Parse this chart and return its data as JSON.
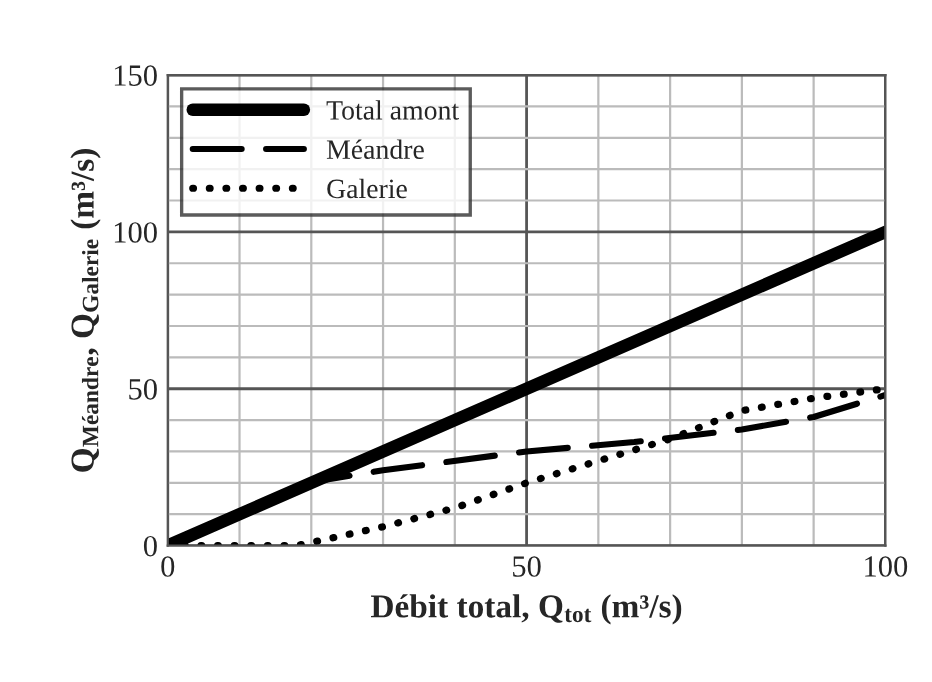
{
  "chart_data": {
    "type": "line",
    "xlabel": "Débit total, Q$_{tot}$ (m³/s)",
    "ylabel": "Q$_{Méandre}$, Q$_{Galerie}$ (m³/s)",
    "xlim": [
      0,
      100
    ],
    "xticks": [
      0,
      50,
      100
    ],
    "ylim": [
      0,
      150
    ],
    "yticks": [
      0,
      50,
      100,
      150
    ],
    "grid": true,
    "legend": "top left",
    "series": [
      {
        "name": "Total amont",
        "color": "#000000",
        "line_style": "solid",
        "x": [
          0,
          100
        ],
        "values": [
          0,
          100
        ]
      },
      {
        "name": "Méandre",
        "color": "#000000",
        "line_style": "dashed",
        "x": [
          0,
          20,
          22,
          30,
          50,
          65,
          80,
          90,
          100
        ],
        "values": [
          0,
          20,
          21,
          24,
          30,
          33,
          37,
          41,
          48
        ]
      },
      {
        "name": "Galerie",
        "color": "#000000",
        "line_style": "dotted",
        "x": [
          0,
          18,
          20,
          30,
          40,
          50,
          60,
          70,
          80,
          90,
          100
        ],
        "values": [
          0,
          0,
          1,
          6,
          12,
          20,
          27,
          34,
          43,
          47,
          50
        ]
      }
    ]
  }
}
